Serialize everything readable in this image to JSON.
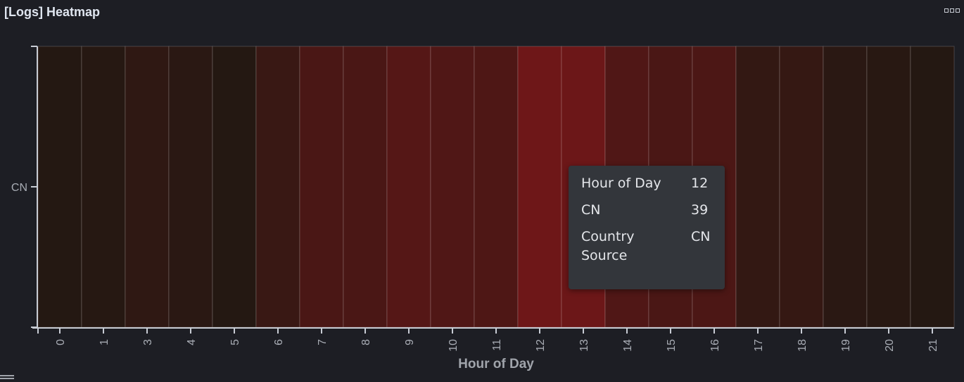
{
  "panel": {
    "title": "[Logs] Heatmap"
  },
  "tooltip": {
    "rows": [
      {
        "key": "Hour of Day",
        "value": "12"
      },
      {
        "key": "CN",
        "value": "39"
      },
      {
        "key": "Country Source",
        "value": "CN"
      }
    ]
  },
  "icons": {
    "options": "ellipsis-boxes-icon",
    "legend": "list-icon"
  },
  "chart_data": {
    "type": "heatmap",
    "xlabel": "Hour of Day",
    "ylabel": "",
    "y_categories": [
      "CN"
    ],
    "x_categories": [
      "0",
      "1",
      "3",
      "4",
      "5",
      "6",
      "7",
      "8",
      "9",
      "10",
      "11",
      "12",
      "13",
      "14",
      "15",
      "16",
      "17",
      "18",
      "19",
      "20",
      "21"
    ],
    "values": [
      4,
      5,
      9,
      7,
      4,
      14,
      22,
      22,
      27,
      25,
      24,
      39,
      38,
      25,
      22,
      23,
      11,
      12,
      7,
      6,
      4
    ],
    "color_scale": {
      "low": "#241812",
      "high": "#6e1718"
    },
    "grid": false,
    "legend": "bottom-left"
  }
}
